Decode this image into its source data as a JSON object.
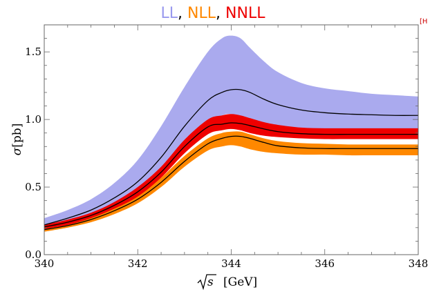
{
  "chart_data": {
    "type": "area",
    "title_parts": [
      {
        "text": "LL",
        "color": "#9999ee"
      },
      {
        "text": ", ",
        "color": "#000000"
      },
      {
        "text": "NLL",
        "color": "#ff8800"
      },
      {
        "text": ", ",
        "color": "#000000"
      },
      {
        "text": "NNLL",
        "color": "#ee0000"
      }
    ],
    "corner_reference": "[H",
    "xlabel_symbol": "s",
    "xlabel_unit": "[GeV]",
    "ylabel_symbol": "σ",
    "ylabel_unit": "[pb]",
    "xlim": [
      340,
      348
    ],
    "ylim": [
      0.0,
      1.7
    ],
    "x_tick_labels": [
      "340",
      "342",
      "344",
      "346",
      "348"
    ],
    "y_tick_labels": [
      "0.0",
      "0.5",
      "1.0",
      "1.5"
    ],
    "x_major_ticks": [
      340,
      342,
      344,
      346,
      348
    ],
    "y_major_ticks": [
      0.0,
      0.5,
      1.0,
      1.5
    ],
    "x_minor_step": 0.5,
    "y_minor_step": 0.1,
    "x": [
      340,
      340.5,
      341,
      341.5,
      342,
      342.5,
      343,
      343.5,
      343.8,
      344,
      344.2,
      344.4,
      344.7,
      345,
      345.5,
      346,
      346.5,
      347,
      347.5,
      348
    ],
    "series": [
      {
        "name": "LL",
        "color": "#aaaaee",
        "lower": [
          0.19,
          0.23,
          0.28,
          0.36,
          0.46,
          0.6,
          0.79,
          0.97,
          1.03,
          1.04,
          1.01,
          0.98,
          0.95,
          0.94,
          0.93,
          0.92,
          0.92,
          0.91,
          0.91,
          0.91
        ],
        "upper": [
          0.27,
          0.33,
          0.41,
          0.53,
          0.7,
          0.95,
          1.24,
          1.5,
          1.6,
          1.62,
          1.6,
          1.53,
          1.43,
          1.35,
          1.27,
          1.23,
          1.21,
          1.19,
          1.18,
          1.17
        ],
        "central": [
          0.22,
          0.27,
          0.33,
          0.42,
          0.54,
          0.72,
          0.95,
          1.14,
          1.2,
          1.22,
          1.22,
          1.2,
          1.15,
          1.11,
          1.07,
          1.05,
          1.04,
          1.035,
          1.03,
          1.03
        ]
      },
      {
        "name": "NLL",
        "color": "#ff8800",
        "lower": [
          0.17,
          0.2,
          0.24,
          0.3,
          0.38,
          0.5,
          0.65,
          0.77,
          0.8,
          0.81,
          0.8,
          0.78,
          0.76,
          0.75,
          0.74,
          0.74,
          0.735,
          0.735,
          0.735,
          0.735
        ],
        "upper": [
          0.2,
          0.23,
          0.28,
          0.35,
          0.44,
          0.57,
          0.73,
          0.86,
          0.9,
          0.91,
          0.91,
          0.89,
          0.86,
          0.84,
          0.825,
          0.82,
          0.815,
          0.815,
          0.815,
          0.815
        ],
        "central": [
          0.185,
          0.215,
          0.26,
          0.325,
          0.41,
          0.535,
          0.69,
          0.82,
          0.86,
          0.875,
          0.875,
          0.86,
          0.83,
          0.805,
          0.79,
          0.785,
          0.785,
          0.785,
          0.785,
          0.785
        ]
      },
      {
        "name": "NNLL",
        "color": "#ee0000",
        "lower": [
          0.19,
          0.22,
          0.27,
          0.34,
          0.43,
          0.57,
          0.75,
          0.89,
          0.92,
          0.93,
          0.92,
          0.9,
          0.88,
          0.87,
          0.86,
          0.855,
          0.855,
          0.855,
          0.855,
          0.855
        ],
        "upper": [
          0.22,
          0.26,
          0.31,
          0.39,
          0.5,
          0.65,
          0.85,
          1.0,
          1.03,
          1.04,
          1.03,
          1.01,
          0.98,
          0.96,
          0.94,
          0.935,
          0.935,
          0.935,
          0.935,
          0.935
        ],
        "central": [
          0.205,
          0.24,
          0.29,
          0.365,
          0.465,
          0.61,
          0.8,
          0.945,
          0.965,
          0.975,
          0.97,
          0.955,
          0.93,
          0.91,
          0.895,
          0.89,
          0.89,
          0.89,
          0.89,
          0.89
        ]
      }
    ],
    "central_line_color": "#000000",
    "grid": false,
    "legend": "title"
  }
}
